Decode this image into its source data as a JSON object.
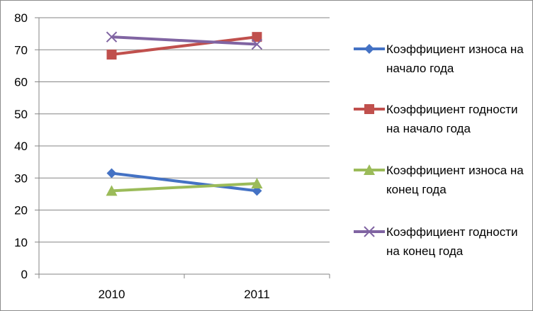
{
  "chart_data": {
    "type": "line",
    "title": "",
    "xlabel": "",
    "ylabel": "",
    "categories": [
      "2010",
      "2011"
    ],
    "ylim": [
      0,
      80
    ],
    "yticks": [
      0,
      10,
      20,
      30,
      40,
      50,
      60,
      70,
      80
    ],
    "grid": true,
    "legend_position": "right",
    "series": [
      {
        "name": "Коэффициент износа на начало года",
        "values": [
          31.5,
          26.0
        ],
        "color": "#4472C4",
        "marker": "diamond"
      },
      {
        "name": "Коэффициент годности на начало года",
        "values": [
          68.5,
          74.0
        ],
        "color": "#C0504D",
        "marker": "square"
      },
      {
        "name": "Коэффициент износа на конец года",
        "values": [
          26.0,
          28.3
        ],
        "color": "#9BBB59",
        "marker": "triangle"
      },
      {
        "name": "Коэффициент годности на конец года",
        "values": [
          74.0,
          71.7
        ],
        "color": "#8064A2",
        "marker": "x"
      }
    ]
  }
}
